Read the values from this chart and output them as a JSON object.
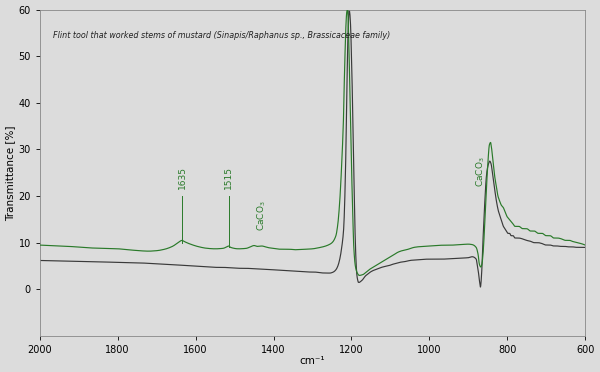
{
  "title": "Flint tool that worked stems of mustard (Sinapis/Raphanus sp., Brassicaceae family)",
  "xlabel": "cm⁻¹",
  "ylabel": "Transmittance [%]",
  "xlim": [
    2000,
    600
  ],
  "ylim": [
    -10,
    60
  ],
  "yticks": [
    0,
    10,
    20,
    30,
    40,
    50,
    60
  ],
  "xticks": [
    2000,
    1800,
    1600,
    1400,
    1200,
    1000,
    800,
    600
  ],
  "green_color": "#2a7a2a",
  "black_color": "#3a3a3a",
  "bg_color": "#dcdcdc",
  "annotation_color": "#2a7a2a",
  "green_pts": [
    [
      2000,
      9.5
    ],
    [
      1950,
      9.3
    ],
    [
      1900,
      9.1
    ],
    [
      1850,
      8.8
    ],
    [
      1800,
      8.7
    ],
    [
      1760,
      8.4
    ],
    [
      1720,
      8.2
    ],
    [
      1700,
      8.3
    ],
    [
      1680,
      8.6
    ],
    [
      1660,
      9.2
    ],
    [
      1645,
      10.0
    ],
    [
      1635,
      10.5
    ],
    [
      1625,
      10.1
    ],
    [
      1610,
      9.6
    ],
    [
      1590,
      9.1
    ],
    [
      1570,
      8.8
    ],
    [
      1550,
      8.7
    ],
    [
      1530,
      8.8
    ],
    [
      1520,
      9.1
    ],
    [
      1515,
      9.3
    ],
    [
      1510,
      9.0
    ],
    [
      1490,
      8.7
    ],
    [
      1470,
      8.8
    ],
    [
      1460,
      9.1
    ],
    [
      1450,
      9.4
    ],
    [
      1440,
      9.2
    ],
    [
      1430,
      9.3
    ],
    [
      1420,
      9.1
    ],
    [
      1410,
      8.9
    ],
    [
      1400,
      8.8
    ],
    [
      1380,
      8.6
    ],
    [
      1360,
      8.6
    ],
    [
      1340,
      8.5
    ],
    [
      1320,
      8.6
    ],
    [
      1300,
      8.7
    ],
    [
      1280,
      9.0
    ],
    [
      1270,
      9.2
    ],
    [
      1260,
      9.5
    ],
    [
      1250,
      10.0
    ],
    [
      1240,
      11.5
    ],
    [
      1235,
      14.0
    ],
    [
      1230,
      19.0
    ],
    [
      1225,
      27.0
    ],
    [
      1220,
      38.0
    ],
    [
      1218,
      46.0
    ],
    [
      1216,
      52.0
    ],
    [
      1214,
      57.0
    ],
    [
      1212,
      59.5
    ],
    [
      1210,
      60.0
    ],
    [
      1208,
      57.0
    ],
    [
      1206,
      50.0
    ],
    [
      1204,
      43.0
    ],
    [
      1202,
      35.0
    ],
    [
      1200,
      27.0
    ],
    [
      1198,
      20.0
    ],
    [
      1196,
      14.0
    ],
    [
      1194,
      9.0
    ],
    [
      1190,
      5.0
    ],
    [
      1185,
      3.5
    ],
    [
      1180,
      3.0
    ],
    [
      1170,
      3.2
    ],
    [
      1160,
      3.8
    ],
    [
      1150,
      4.5
    ],
    [
      1140,
      5.0
    ],
    [
      1130,
      5.5
    ],
    [
      1120,
      6.0
    ],
    [
      1110,
      6.5
    ],
    [
      1100,
      7.0
    ],
    [
      1090,
      7.5
    ],
    [
      1080,
      8.0
    ],
    [
      1070,
      8.3
    ],
    [
      1060,
      8.5
    ],
    [
      1050,
      8.7
    ],
    [
      1040,
      9.0
    ],
    [
      1020,
      9.2
    ],
    [
      1000,
      9.3
    ],
    [
      980,
      9.4
    ],
    [
      960,
      9.5
    ],
    [
      940,
      9.5
    ],
    [
      920,
      9.6
    ],
    [
      900,
      9.7
    ],
    [
      890,
      9.6
    ],
    [
      880,
      9.0
    ],
    [
      875,
      7.5
    ],
    [
      872,
      5.5
    ],
    [
      870,
      5.0
    ],
    [
      868,
      4.8
    ],
    [
      865,
      5.5
    ],
    [
      862,
      8.0
    ],
    [
      858,
      14.0
    ],
    [
      854,
      21.0
    ],
    [
      850,
      27.0
    ],
    [
      846,
      31.0
    ],
    [
      843,
      31.5
    ],
    [
      840,
      30.0
    ],
    [
      836,
      27.0
    ],
    [
      832,
      24.0
    ],
    [
      828,
      22.0
    ],
    [
      824,
      20.0
    ],
    [
      820,
      19.0
    ],
    [
      815,
      18.0
    ],
    [
      810,
      17.5
    ],
    [
      805,
      16.5
    ],
    [
      800,
      15.5
    ],
    [
      795,
      15.0
    ],
    [
      790,
      14.5
    ],
    [
      785,
      14.0
    ],
    [
      780,
      13.5
    ],
    [
      775,
      13.5
    ],
    [
      770,
      13.5
    ],
    [
      760,
      13.0
    ],
    [
      750,
      13.0
    ],
    [
      740,
      12.5
    ],
    [
      730,
      12.5
    ],
    [
      720,
      12.0
    ],
    [
      710,
      12.0
    ],
    [
      700,
      11.5
    ],
    [
      690,
      11.5
    ],
    [
      680,
      11.0
    ],
    [
      670,
      11.0
    ],
    [
      660,
      10.8
    ],
    [
      650,
      10.5
    ],
    [
      640,
      10.5
    ],
    [
      630,
      10.2
    ],
    [
      620,
      10.0
    ],
    [
      610,
      9.8
    ],
    [
      600,
      9.5
    ]
  ],
  "black_pts": [
    [
      2000,
      6.2
    ],
    [
      1950,
      6.1
    ],
    [
      1900,
      6.0
    ],
    [
      1850,
      5.9
    ],
    [
      1800,
      5.8
    ],
    [
      1760,
      5.7
    ],
    [
      1720,
      5.6
    ],
    [
      1700,
      5.5
    ],
    [
      1680,
      5.4
    ],
    [
      1660,
      5.3
    ],
    [
      1640,
      5.2
    ],
    [
      1620,
      5.1
    ],
    [
      1600,
      5.0
    ],
    [
      1580,
      4.9
    ],
    [
      1560,
      4.8
    ],
    [
      1540,
      4.7
    ],
    [
      1520,
      4.7
    ],
    [
      1500,
      4.6
    ],
    [
      1480,
      4.5
    ],
    [
      1460,
      4.5
    ],
    [
      1440,
      4.4
    ],
    [
      1420,
      4.3
    ],
    [
      1400,
      4.2
    ],
    [
      1380,
      4.1
    ],
    [
      1360,
      4.0
    ],
    [
      1340,
      3.9
    ],
    [
      1320,
      3.8
    ],
    [
      1300,
      3.7
    ],
    [
      1290,
      3.7
    ],
    [
      1280,
      3.6
    ],
    [
      1270,
      3.5
    ],
    [
      1260,
      3.5
    ],
    [
      1255,
      3.5
    ],
    [
      1250,
      3.6
    ],
    [
      1245,
      3.8
    ],
    [
      1240,
      4.2
    ],
    [
      1235,
      5.0
    ],
    [
      1230,
      6.5
    ],
    [
      1225,
      9.0
    ],
    [
      1220,
      13.0
    ],
    [
      1218,
      17.0
    ],
    [
      1216,
      23.0
    ],
    [
      1214,
      31.0
    ],
    [
      1212,
      41.0
    ],
    [
      1210,
      51.0
    ],
    [
      1208,
      57.0
    ],
    [
      1206,
      60.0
    ],
    [
      1204,
      59.0
    ],
    [
      1202,
      56.0
    ],
    [
      1200,
      50.0
    ],
    [
      1198,
      43.0
    ],
    [
      1196,
      35.0
    ],
    [
      1194,
      26.0
    ],
    [
      1192,
      17.0
    ],
    [
      1190,
      10.0
    ],
    [
      1188,
      5.5
    ],
    [
      1186,
      3.0
    ],
    [
      1184,
      2.0
    ],
    [
      1182,
      1.5
    ],
    [
      1180,
      1.5
    ],
    [
      1175,
      1.8
    ],
    [
      1170,
      2.2
    ],
    [
      1165,
      2.8
    ],
    [
      1160,
      3.2
    ],
    [
      1155,
      3.5
    ],
    [
      1150,
      3.8
    ],
    [
      1140,
      4.2
    ],
    [
      1130,
      4.5
    ],
    [
      1120,
      4.8
    ],
    [
      1110,
      5.0
    ],
    [
      1100,
      5.2
    ],
    [
      1090,
      5.5
    ],
    [
      1080,
      5.7
    ],
    [
      1070,
      5.9
    ],
    [
      1060,
      6.0
    ],
    [
      1050,
      6.2
    ],
    [
      1040,
      6.3
    ],
    [
      1020,
      6.4
    ],
    [
      1000,
      6.5
    ],
    [
      980,
      6.5
    ],
    [
      960,
      6.5
    ],
    [
      940,
      6.6
    ],
    [
      920,
      6.7
    ],
    [
      900,
      6.8
    ],
    [
      890,
      7.0
    ],
    [
      880,
      6.5
    ],
    [
      876,
      4.5
    ],
    [
      873,
      3.0
    ],
    [
      871,
      1.5
    ],
    [
      870,
      1.0
    ],
    [
      869,
      0.5
    ],
    [
      868,
      1.0
    ],
    [
      867,
      2.0
    ],
    [
      865,
      5.0
    ],
    [
      863,
      9.5
    ],
    [
      860,
      15.0
    ],
    [
      857,
      20.0
    ],
    [
      854,
      24.0
    ],
    [
      851,
      26.0
    ],
    [
      848,
      27.0
    ],
    [
      845,
      27.5
    ],
    [
      842,
      27.0
    ],
    [
      838,
      25.0
    ],
    [
      834,
      22.5
    ],
    [
      830,
      20.0
    ],
    [
      826,
      18.0
    ],
    [
      822,
      16.5
    ],
    [
      818,
      15.5
    ],
    [
      814,
      14.5
    ],
    [
      810,
      13.5
    ],
    [
      806,
      13.0
    ],
    [
      802,
      12.5
    ],
    [
      798,
      12.0
    ],
    [
      794,
      12.0
    ],
    [
      790,
      11.5
    ],
    [
      785,
      11.5
    ],
    [
      780,
      11.0
    ],
    [
      775,
      11.0
    ],
    [
      770,
      11.0
    ],
    [
      760,
      10.8
    ],
    [
      750,
      10.5
    ],
    [
      740,
      10.3
    ],
    [
      730,
      10.0
    ],
    [
      720,
      10.0
    ],
    [
      710,
      9.8
    ],
    [
      700,
      9.5
    ],
    [
      690,
      9.5
    ],
    [
      680,
      9.3
    ],
    [
      670,
      9.3
    ],
    [
      660,
      9.2
    ],
    [
      650,
      9.2
    ],
    [
      640,
      9.1
    ],
    [
      630,
      9.1
    ],
    [
      620,
      9.0
    ],
    [
      610,
      9.0
    ],
    [
      600,
      9.0
    ]
  ]
}
